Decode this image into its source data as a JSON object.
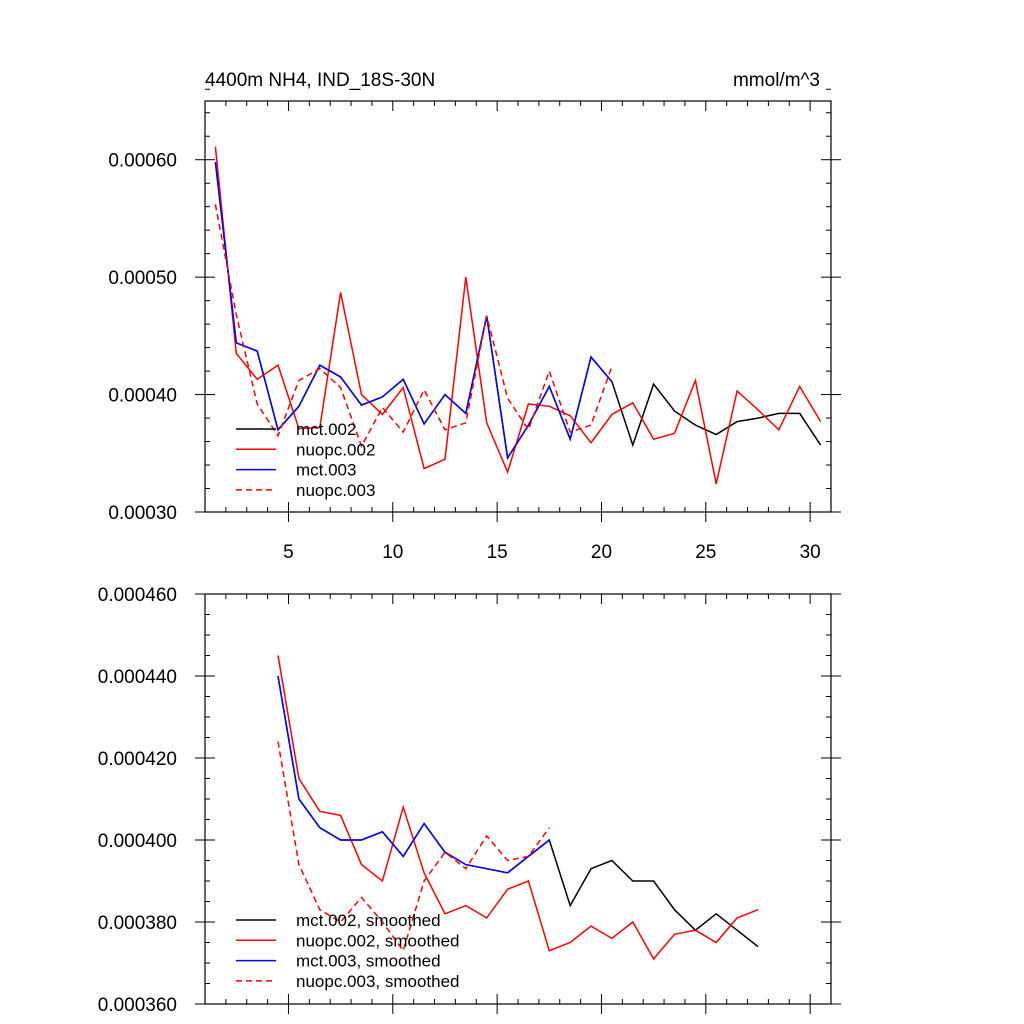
{
  "chart_data": [
    {
      "type": "line",
      "title": "4400m NH4, IND_18S-30N",
      "units": "mmol/m^3",
      "xlim": [
        1,
        31
      ],
      "ylim": [
        0.0003,
        0.00065
      ],
      "xticks": [
        5,
        10,
        15,
        20,
        25,
        30
      ],
      "xtick_labels": [
        "5",
        "10",
        "15",
        "20",
        "25",
        "30"
      ],
      "yticks": [
        0.0003,
        0.0004,
        0.0005,
        0.0006
      ],
      "ytick_labels": [
        "0.00030",
        "0.00040",
        "0.00050",
        "0.00060"
      ],
      "legend_position": "bottom-left",
      "series": [
        {
          "name": "mct.002",
          "color": "#000000",
          "dash": "",
          "x": [
            1.5,
            2.5,
            3.5,
            4.5,
            5.5,
            6.5,
            7.5,
            8.5,
            9.5,
            10.5,
            11.5,
            12.5,
            13.5,
            14.5,
            15.5,
            16.5,
            17.5,
            18.5,
            19.5,
            20.5,
            21.5,
            22.5,
            23.5,
            24.5,
            25.5,
            26.5,
            27.5,
            28.5,
            29.5,
            30.5
          ],
          "y": [
            0.000598,
            0.000444,
            0.000437,
            0.00037,
            0.00039,
            0.000425,
            0.000415,
            0.000391,
            0.000398,
            0.000413,
            0.000375,
            0.0004,
            0.000384,
            0.000467,
            0.000346,
            0.000374,
            0.000407,
            0.000362,
            0.000432,
            0.000411,
            0.000357,
            0.000409,
            0.000386,
            0.000374,
            0.000366,
            0.000377,
            0.00038,
            0.000384,
            0.000384,
            0.000357
          ]
        },
        {
          "name": "nuopc.002",
          "color": "#ff0000",
          "dash": "",
          "x": [
            1.5,
            2.5,
            3.5,
            4.5,
            5.5,
            6.5,
            7.5,
            8.5,
            9.5,
            10.5,
            11.5,
            12.5,
            13.5,
            14.5,
            15.5,
            16.5,
            17.5,
            18.5,
            19.5,
            20.5,
            21.5,
            22.5,
            23.5,
            24.5,
            25.5,
            26.5,
            27.5,
            28.5,
            29.5,
            30.5
          ],
          "y": [
            0.000611,
            0.000435,
            0.000413,
            0.000425,
            0.000371,
            0.000372,
            0.000487,
            0.0004,
            0.000383,
            0.000406,
            0.000337,
            0.000345,
            0.0005,
            0.000376,
            0.000334,
            0.000392,
            0.00039,
            0.000382,
            0.000359,
            0.000383,
            0.000393,
            0.000362,
            0.000367,
            0.000412,
            0.000324,
            0.000403,
            0.000387,
            0.00037,
            0.000407,
            0.000377
          ]
        },
        {
          "name": "mct.003",
          "color": "#0000ff",
          "dash": "",
          "x": [
            1.5,
            2.5,
            3.5,
            4.5,
            5.5,
            6.5,
            7.5,
            8.5,
            9.5,
            10.5,
            11.5,
            12.5,
            13.5,
            14.5,
            15.5,
            16.5,
            17.5,
            18.5,
            19.5,
            20.5
          ],
          "y": [
            0.000598,
            0.000444,
            0.000437,
            0.00037,
            0.00039,
            0.000425,
            0.000415,
            0.000391,
            0.000398,
            0.000413,
            0.000375,
            0.0004,
            0.000384,
            0.000467,
            0.000346,
            0.000374,
            0.000407,
            0.000362,
            0.000432,
            0.000411
          ]
        },
        {
          "name": "nuopc.003",
          "color": "#ff0000",
          "dash": "6,4",
          "x": [
            1.5,
            2.5,
            3.5,
            4.5,
            5.5,
            6.5,
            7.5,
            8.5,
            9.5,
            10.5,
            11.5,
            12.5,
            13.5,
            14.5,
            15.5,
            16.5,
            17.5,
            18.5,
            19.5,
            20.5
          ],
          "y": [
            0.000562,
            0.000468,
            0.000392,
            0.000365,
            0.000412,
            0.000422,
            0.000406,
            0.000356,
            0.000389,
            0.000368,
            0.000404,
            0.00037,
            0.000376,
            0.000467,
            0.000397,
            0.00037,
            0.00042,
            0.000368,
            0.000374,
            0.000424
          ]
        }
      ]
    },
    {
      "type": "line",
      "title": "",
      "xlim": [
        1,
        31
      ],
      "ylim": [
        0.00036,
        0.00046
      ],
      "xticks": [
        5,
        10,
        15,
        20,
        25,
        30
      ],
      "yticks": [
        0.00036,
        0.00038,
        0.0004,
        0.00042,
        0.00044,
        0.00046
      ],
      "ytick_labels": [
        "0.000360",
        "0.000380",
        "0.000400",
        "0.000420",
        "0.000440",
        "0.000460"
      ],
      "legend_position": "bottom-left",
      "series": [
        {
          "name": "mct.002, smoothed",
          "color": "#000000",
          "dash": "",
          "x": [
            4.5,
            5.5,
            6.5,
            7.5,
            8.5,
            9.5,
            10.5,
            11.5,
            12.5,
            13.5,
            14.5,
            15.5,
            16.5,
            17.5,
            18.5,
            19.5,
            20.5,
            21.5,
            22.5,
            23.5,
            24.5,
            25.5,
            26.5,
            27.5
          ],
          "y": [
            0.00044,
            0.00041,
            0.000403,
            0.0004,
            0.0004,
            0.000402,
            0.000396,
            0.000404,
            0.000397,
            0.000394,
            0.000393,
            0.000392,
            0.000396,
            0.0004,
            0.000384,
            0.000393,
            0.000395,
            0.00039,
            0.00039,
            0.000383,
            0.000378,
            0.000382,
            0.000378,
            0.000374
          ]
        },
        {
          "name": "nuopc.002, smoothed",
          "color": "#ff0000",
          "dash": "",
          "x": [
            4.5,
            5.5,
            6.5,
            7.5,
            8.5,
            9.5,
            10.5,
            11.5,
            12.5,
            13.5,
            14.5,
            15.5,
            16.5,
            17.5,
            18.5,
            19.5,
            20.5,
            21.5,
            22.5,
            23.5,
            24.5,
            25.5,
            26.5,
            27.5
          ],
          "y": [
            0.000445,
            0.000415,
            0.000407,
            0.000406,
            0.000394,
            0.00039,
            0.000408,
            0.000392,
            0.000382,
            0.000384,
            0.000381,
            0.000388,
            0.00039,
            0.000373,
            0.000375,
            0.000379,
            0.000376,
            0.00038,
            0.000371,
            0.000377,
            0.000378,
            0.000375,
            0.000381,
            0.000383
          ]
        },
        {
          "name": "mct.003, smoothed",
          "color": "#0000ff",
          "dash": "",
          "x": [
            4.5,
            5.5,
            6.5,
            7.5,
            8.5,
            9.5,
            10.5,
            11.5,
            12.5,
            13.5,
            14.5,
            15.5,
            16.5,
            17.5
          ],
          "y": [
            0.00044,
            0.00041,
            0.000403,
            0.0004,
            0.0004,
            0.000402,
            0.000396,
            0.000404,
            0.000397,
            0.000394,
            0.000393,
            0.000392,
            0.000396,
            0.0004
          ]
        },
        {
          "name": "nuopc.003, smoothed",
          "color": "#ff0000",
          "dash": "6,4",
          "x": [
            4.5,
            5.5,
            6.5,
            7.5,
            8.5,
            9.5,
            10.5,
            11.5,
            12.5,
            13.5,
            14.5,
            15.5,
            16.5,
            17.5
          ],
          "y": [
            0.000424,
            0.000394,
            0.000383,
            0.00038,
            0.000386,
            0.00038,
            0.000373,
            0.00039,
            0.000397,
            0.000393,
            0.000401,
            0.000395,
            0.000396,
            0.000403
          ]
        }
      ]
    }
  ]
}
